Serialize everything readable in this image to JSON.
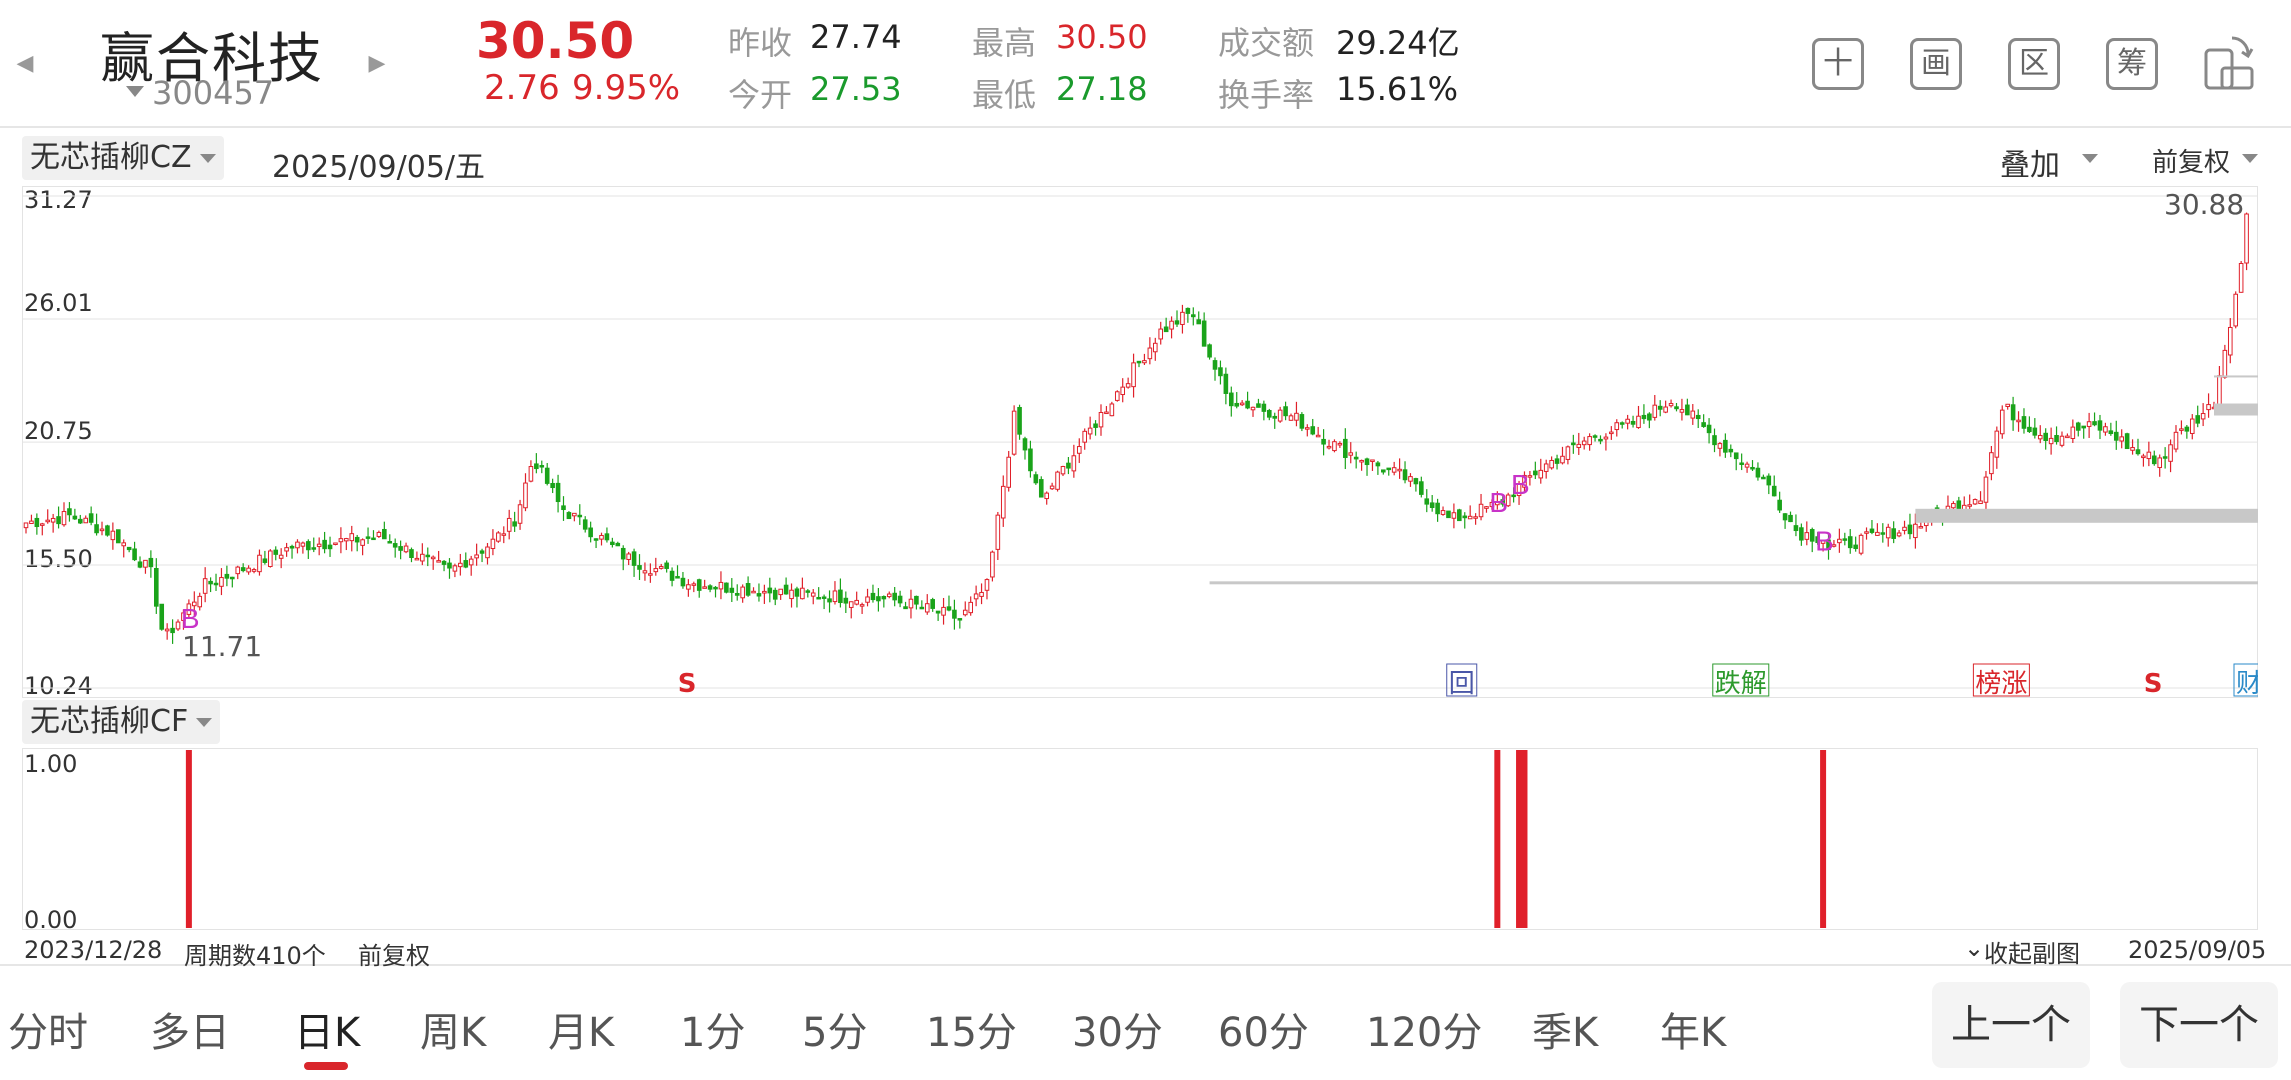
{
  "header": {
    "stock_name": "赢合科技",
    "stock_code": "300457",
    "price": "30.50",
    "change": "2.76",
    "change_pct": "9.95%",
    "quote": {
      "prev_close_label": "昨收",
      "prev_close": "27.74",
      "open_label": "今开",
      "open": "27.53",
      "high_label": "最高",
      "high": "30.50",
      "low_label": "最低",
      "low": "27.18",
      "turnover_label": "成交额",
      "turnover": "29.24亿",
      "turnover_rate_label": "换手率",
      "turnover_rate": "15.61%"
    },
    "tools": [
      "十",
      "画",
      "区",
      "筹"
    ]
  },
  "main_chart": {
    "indicator": "无芯插柳CZ",
    "date": "2025/09/05/五",
    "overlay_label": "叠加",
    "adjust_label": "前复权",
    "y_ticks": [
      "31.27",
      "26.01",
      "20.75",
      "15.50",
      "10.24"
    ],
    "y_range": [
      10.24,
      31.27
    ],
    "max_label": "30.88",
    "min_label": "11.71",
    "bars": 410,
    "up_color": "#e0202a",
    "down_color": "#1aa31a",
    "signals": [
      {
        "text": "B",
        "index": 30
      },
      {
        "text": "B",
        "index": 271
      },
      {
        "text": "B",
        "index": 275
      },
      {
        "text": "B",
        "index": 331
      }
    ],
    "events": [
      {
        "text": "S",
        "index": 116,
        "color": "#d9262b",
        "plain": true
      },
      {
        "text": "回",
        "index": 258,
        "color": "#4a57a8"
      },
      {
        "text": "跌解",
        "index": 307,
        "color": "#2d9a2d"
      },
      {
        "text": "榜涨",
        "index": 355,
        "color": "#d9262b"
      },
      {
        "text": "S",
        "index": 386,
        "color": "#d9262b",
        "plain": true
      },
      {
        "text": "财减",
        "index": 403,
        "color": "#2a8ac8"
      }
    ]
  },
  "sub_chart": {
    "indicator": "无芯插柳CF",
    "y_ticks": [
      "1.00",
      "0.00"
    ],
    "spikes": [
      30,
      271,
      275,
      276,
      331
    ],
    "spike_color": "#e0202a"
  },
  "footer_info": {
    "start_date": "2023/12/28",
    "period_count": "周期数410个",
    "adjust": "前复权",
    "collapse": "收起副图",
    "end_date": "2025/09/05"
  },
  "periods": [
    "分时",
    "多日",
    "日K",
    "周K",
    "月K",
    "1分",
    "5分",
    "15分",
    "30分",
    "60分",
    "120分",
    "季K",
    "年K"
  ],
  "active_period": "日K",
  "prev_button": "上一个",
  "next_button": "下一个"
}
